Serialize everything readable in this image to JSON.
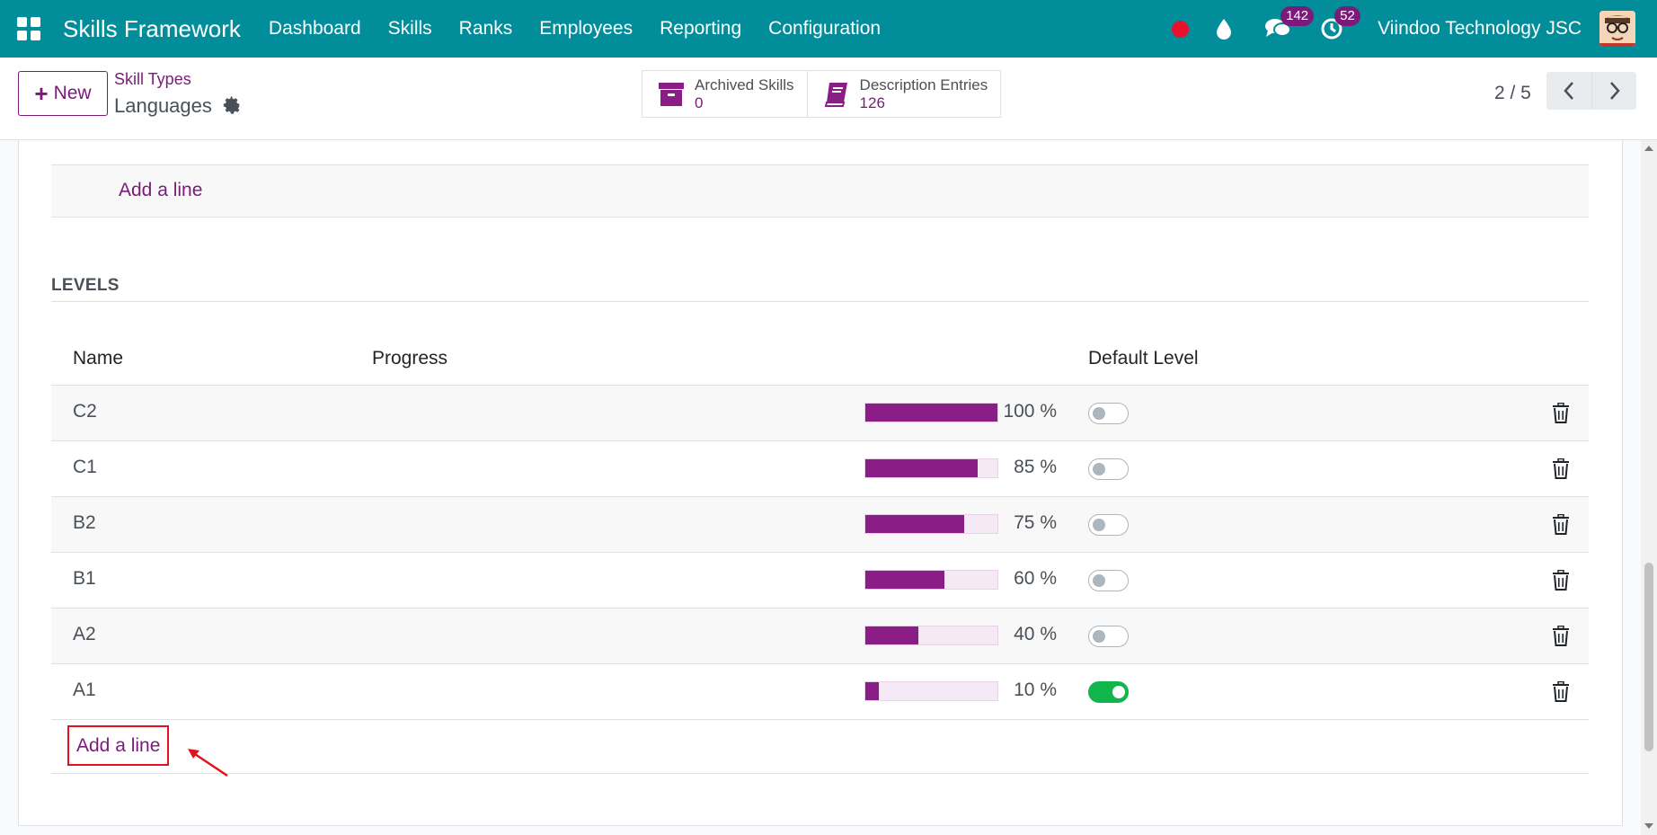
{
  "navbar": {
    "brand": "Skills Framework",
    "menu": [
      "Dashboard",
      "Skills",
      "Ranks",
      "Employees",
      "Reporting",
      "Configuration"
    ],
    "messages_count": "142",
    "activities_count": "52",
    "company": "Viindoo Technology JSC"
  },
  "control_panel": {
    "new_label": "New",
    "breadcrumb": "Skill Types",
    "record_name": "Languages",
    "smart_buttons": [
      {
        "label": "Archived Skills",
        "value": "0",
        "icon": "archive-icon"
      },
      {
        "label": "Description Entries",
        "value": "126",
        "icon": "book-icon"
      }
    ],
    "pager": "2 / 5"
  },
  "form": {
    "add_line_top": "Add a line",
    "section_title": "LEVELS",
    "columns": {
      "name": "Name",
      "progress": "Progress",
      "default": "Default Level"
    },
    "levels": [
      {
        "name": "C2",
        "progress": 100,
        "progress_label": "100 %",
        "default": false
      },
      {
        "name": "C1",
        "progress": 85,
        "progress_label": "85 %",
        "default": false
      },
      {
        "name": "B2",
        "progress": 75,
        "progress_label": "75 %",
        "default": false
      },
      {
        "name": "B1",
        "progress": 60,
        "progress_label": "60 %",
        "default": false
      },
      {
        "name": "A2",
        "progress": 40,
        "progress_label": "40 %",
        "default": false
      },
      {
        "name": "A1",
        "progress": 10,
        "progress_label": "10 %",
        "default": true
      }
    ],
    "add_line_bottom": "Add a line"
  },
  "colors": {
    "navbar": "#018d9a",
    "accent": "#7b1a7a",
    "progress_fill": "#8b1d86",
    "toggle_on": "#12b54b",
    "highlight": "#e1121d"
  }
}
